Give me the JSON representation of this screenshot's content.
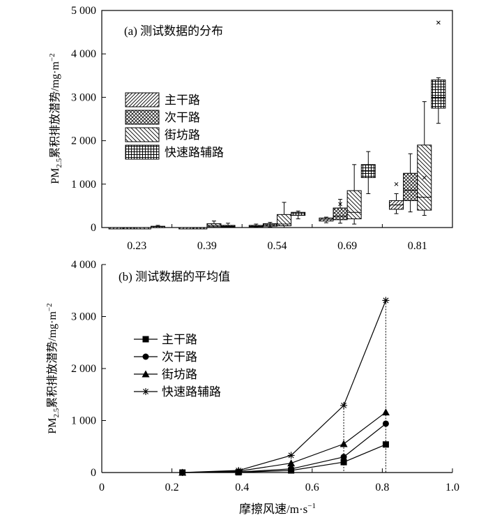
{
  "chart_data": [
    {
      "type": "box",
      "title": "(a) 测试数据的分布",
      "ylabel": "PM2.5累积排放潜势/mg·m⁻²",
      "ylabel_parts": [
        "PM",
        "2.5",
        "累积排放潜势/mg·m",
        "−2"
      ],
      "ylim": [
        0,
        5000
      ],
      "yticks": [
        0,
        1000,
        2000,
        3000,
        4000,
        5000
      ],
      "ytick_labels": [
        "0",
        "1 000",
        "2 000",
        "3 000",
        "4 000",
        "5 000"
      ],
      "categories": [
        "0.23",
        "0.39",
        "0.54",
        "0.69",
        "0.81"
      ],
      "series": [
        {
          "name": "主干路",
          "pattern": "diag",
          "boxes": [
            [
              0,
              0,
              0,
              0,
              0
            ],
            [
              0,
              0,
              0,
              0,
              0
            ],
            [
              10,
              20,
              30,
              50,
              80
            ],
            [
              110,
              150,
              190,
              220,
              240
            ],
            [
              320,
              420,
              520,
              620,
              780
            ]
          ],
          "outliers": [
            [],
            [],
            [],
            [],
            [
              1000
            ]
          ]
        },
        {
          "name": "次干路",
          "pattern": "cross",
          "boxes": [
            [
              0,
              0,
              0,
              0,
              0
            ],
            [
              0,
              0,
              0,
              0,
              0
            ],
            [
              10,
              30,
              60,
              90,
              120
            ],
            [
              100,
              180,
              260,
              450,
              650
            ],
            [
              360,
              620,
              860,
              1250,
              1700
            ]
          ],
          "outliers": [
            [],
            [],
            [],
            [
              540
            ],
            []
          ]
        },
        {
          "name": "街坊路",
          "pattern": "back",
          "boxes": [
            [
              0,
              0,
              0,
              0,
              0
            ],
            [
              0,
              20,
              50,
              90,
              150
            ],
            [
              0,
              40,
              80,
              300,
              580
            ],
            [
              80,
              200,
              350,
              850,
              1450
            ],
            [
              280,
              400,
              700,
              1900,
              2900
            ]
          ],
          "outliers": [
            [],
            [],
            [],
            [],
            [
              1150
            ]
          ]
        },
        {
          "name": "快速路辅路",
          "pattern": "grid",
          "boxes": [
            [
              0,
              10,
              20,
              30,
              50
            ],
            [
              0,
              15,
              30,
              50,
              100
            ],
            [
              200,
              280,
              320,
              350,
              380
            ],
            [
              780,
              1150,
              1300,
              1450,
              1750
            ],
            [
              2400,
              2750,
              3000,
              3400,
              3450
            ]
          ],
          "outliers": [
            [],
            [],
            [],
            [],
            [
              4720
            ]
          ]
        }
      ]
    },
    {
      "type": "line",
      "title": "(b) 测试数据的平均值",
      "xlabel": "摩擦风速/m·s⁻¹",
      "xlabel_parts": [
        "摩擦风速/m·s",
        "−1"
      ],
      "ylabel": "PM2.5累积排放潜势/mg·m⁻²",
      "ylabel_parts": [
        "PM",
        "2.5",
        "累积排放潜势/mg·m",
        "−2"
      ],
      "xlim": [
        0,
        1.0
      ],
      "ylim": [
        0,
        4000
      ],
      "xticks": [
        0,
        0.2,
        0.4,
        0.6,
        0.8,
        1.0
      ],
      "xtick_labels": [
        "0",
        "0.2",
        "0.4",
        "0.6",
        "0.8",
        "1.0"
      ],
      "yticks": [
        0,
        1000,
        2000,
        3000,
        4000
      ],
      "ytick_labels": [
        "0",
        "1 000",
        "2 000",
        "3 000",
        "4 000"
      ],
      "x": [
        0.23,
        0.39,
        0.54,
        0.69,
        0.81
      ],
      "series": [
        {
          "name": "主干路",
          "marker": "square",
          "values": [
            0,
            5,
            40,
            200,
            540
          ]
        },
        {
          "name": "次干路",
          "marker": "circle",
          "values": [
            0,
            10,
            70,
            300,
            940
          ]
        },
        {
          "name": "街坊路",
          "marker": "triangle",
          "values": [
            0,
            25,
            180,
            550,
            1160
          ]
        },
        {
          "name": "快速路辅路",
          "marker": "star",
          "values": [
            0,
            40,
            330,
            1290,
            3310
          ]
        }
      ],
      "dotted_x": [
        0.69,
        0.81
      ]
    }
  ]
}
